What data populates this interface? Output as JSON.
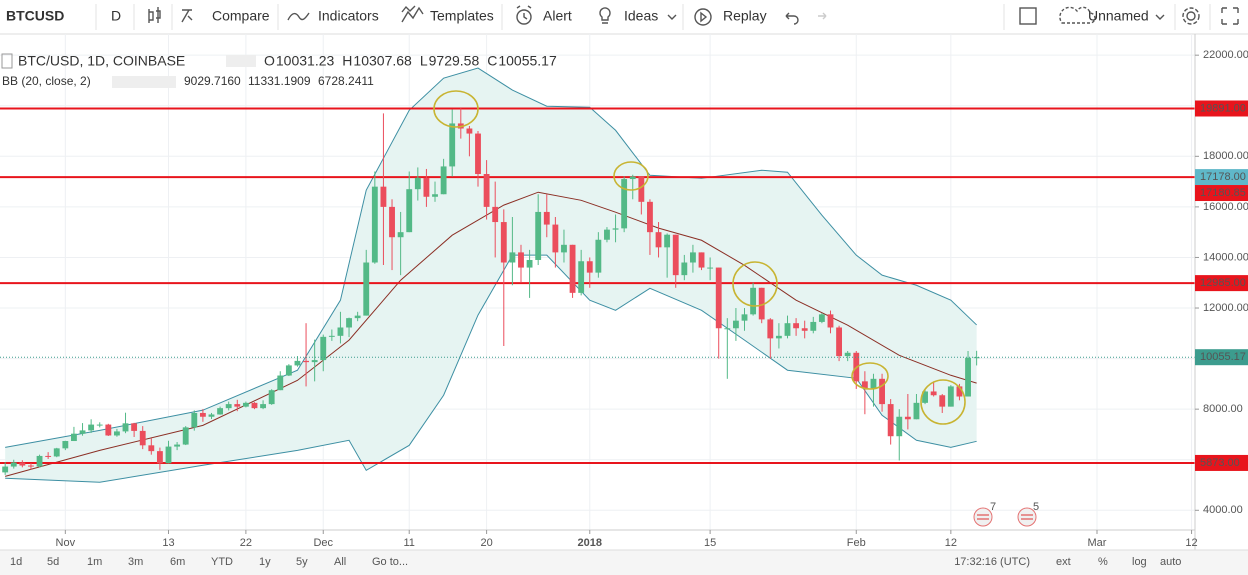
{
  "toolbar": {
    "symbol": "BTCUSD",
    "interval": "D",
    "buttons": [
      "Compare",
      "Indicators",
      "Templates",
      "Alert",
      "Ideas",
      "Replay"
    ],
    "layout": "Unnamed"
  },
  "legend": {
    "title": "BTC/USD, 1D, COINBASE",
    "ohlc_letters": [
      "O",
      "H",
      "L",
      "C"
    ],
    "indicator": "BB (20, close, 2)"
  },
  "events": {
    "counts": [
      7,
      5
    ]
  },
  "chart_data": {
    "type": "candlestick",
    "up_color": "#53b987",
    "down_color": "#eb4d5c",
    "grid": true,
    "ylim": [
      3300,
      22600
    ],
    "yticks": [
      {
        "value": 4000,
        "label": "4000.00"
      },
      {
        "value": 6000,
        "label": "6000.00"
      },
      {
        "value": 8000,
        "label": "8000.00"
      },
      {
        "value": 10000,
        "label": "10000.00"
      },
      {
        "value": 12000,
        "label": "12000.00"
      },
      {
        "value": 14000,
        "label": "14000.00"
      },
      {
        "value": 16000,
        "label": "16000.00"
      },
      {
        "value": 18000,
        "label": "18000.00"
      },
      {
        "value": 20000,
        "label": "20000.00"
      },
      {
        "value": 22000,
        "label": "22000.00"
      }
    ],
    "xlim": [
      -0.6,
      138.4
    ],
    "xticks": [
      {
        "value": 7,
        "label": "Nov"
      },
      {
        "value": 19,
        "label": "13"
      },
      {
        "value": 28,
        "label": "22"
      },
      {
        "value": 37,
        "label": "Dec"
      },
      {
        "value": 47,
        "label": "11"
      },
      {
        "value": 56,
        "label": "20"
      },
      {
        "value": 68,
        "label": "2018"
      },
      {
        "value": 82,
        "label": "15"
      },
      {
        "value": 99,
        "label": "Feb"
      },
      {
        "value": 110,
        "label": "12"
      },
      {
        "value": 127,
        "label": "Mar"
      },
      {
        "value": 138,
        "label": "12"
      }
    ],
    "open": [
      5500,
      5730,
      5890,
      5770,
      5730,
      6150,
      6130,
      6450,
      6740,
      7030,
      7160,
      7390,
      7390,
      6960,
      7120,
      7440,
      7140,
      6570,
      6340,
      5860,
      6520,
      6600,
      7280,
      7850,
      7700,
      7790,
      8040,
      8200,
      8100,
      8250,
      8040,
      8200,
      8750,
      9330,
      9730,
      9910,
      9860,
      9940,
      10860,
      10900,
      11230,
      11600,
      11700,
      13800,
      16800,
      16000,
      14800,
      15000,
      16700,
      17150,
      16400,
      16500,
      17600,
      19300,
      19100,
      18900,
      17300,
      16000,
      15400,
      13800,
      14200,
      13600,
      13900,
      15800,
      15300,
      14200,
      14500,
      12600,
      13850,
      13400,
      14700,
      15100,
      15150,
      17100,
      17200,
      16200,
      15000,
      14400,
      14900,
      13300,
      13800,
      14200,
      13600,
      13600,
      11200,
      11200,
      11500,
      11750,
      12800,
      11550,
      10800,
      10900,
      11400,
      11200,
      11100,
      11450,
      11750,
      11230,
      10100,
      10230,
      9100,
      8830,
      9200,
      8200,
      6930,
      7700,
      7600,
      8250,
      8700,
      8550,
      8100,
      8900,
      8500,
      10031.23
    ],
    "high": [
      5900,
      6000,
      5980,
      5870,
      6200,
      6300,
      6470,
      6750,
      7300,
      7450,
      7600,
      7480,
      7420,
      7220,
      7860,
      7460,
      7330,
      6850,
      6480,
      6750,
      6700,
      7330,
      7950,
      8000,
      7850,
      8100,
      8300,
      8370,
      8300,
      8280,
      8350,
      8790,
      9500,
      9780,
      10100,
      11400,
      10750,
      10950,
      11150,
      11850,
      11620,
      11850,
      14300,
      17400,
      19700,
      16300,
      15800,
      17400,
      17560,
      17500,
      17000,
      17900,
      19850,
      19900,
      19200,
      19000,
      17850,
      17000,
      15900,
      15600,
      14500,
      14300,
      16500,
      16500,
      15600,
      15100,
      14500,
      14300,
      14000,
      15000,
      15200,
      15700,
      17200,
      17270,
      17200,
      16300,
      15400,
      14950,
      14900,
      14100,
      14500,
      14200,
      14000,
      13600,
      11600,
      12000,
      12000,
      13000,
      12800,
      11600,
      11400,
      11700,
      11600,
      11500,
      11650,
      11800,
      11900,
      11300,
      10300,
      10300,
      9500,
      9400,
      9400,
      8400,
      8000,
      8600,
      8600,
      8800,
      9100,
      8600,
      8950,
      9000,
      10300,
      10307.68
    ],
    "low": [
      5400,
      5650,
      5700,
      5620,
      5700,
      6030,
      6100,
      6380,
      6740,
      6950,
      7060,
      7280,
      6940,
      6910,
      7050,
      6900,
      6420,
      6200,
      5600,
      5850,
      6380,
      6580,
      7150,
      7500,
      7610,
      7780,
      7950,
      7920,
      8070,
      8000,
      8000,
      8170,
      8750,
      9310,
      9680,
      8900,
      9100,
      9500,
      10700,
      10600,
      10850,
      11480,
      11700,
      13750,
      13700,
      13500,
      13300,
      15000,
      16250,
      16000,
      16200,
      16500,
      17200,
      18700,
      18000,
      16800,
      15500,
      14000,
      10500,
      12900,
      13000,
      12400,
      13700,
      14800,
      13600,
      13800,
      12400,
      12500,
      12800,
      13200,
      14600,
      14600,
      15000,
      16300,
      15700,
      14100,
      14000,
      13200,
      12800,
      13100,
      13400,
      13500,
      13100,
      10000,
      9200,
      10700,
      11100,
      11700,
      11400,
      10000,
      10400,
      10800,
      10900,
      10800,
      11000,
      11400,
      11000,
      9900,
      9900,
      8800,
      7800,
      8100,
      7900,
      6600,
      5970,
      7200,
      7600,
      8200,
      8500,
      7850,
      8100,
      8350,
      8500,
      9729.58
    ],
    "close": [
      5730,
      5890,
      5770,
      5730,
      6150,
      6130,
      6450,
      6740,
      7030,
      7160,
      7390,
      7390,
      6960,
      7120,
      7440,
      7140,
      6570,
      6340,
      5860,
      6520,
      6600,
      7280,
      7850,
      7700,
      7790,
      8040,
      8200,
      8100,
      8250,
      8040,
      8200,
      8750,
      9330,
      9730,
      9910,
      9860,
      9940,
      10860,
      10900,
      11230,
      11600,
      11700,
      13800,
      16800,
      16000,
      14800,
      15000,
      16700,
      17150,
      16400,
      16500,
      17600,
      19300,
      19100,
      18900,
      17300,
      16000,
      15400,
      13800,
      14200,
      13600,
      13900,
      15800,
      15300,
      14200,
      14500,
      12600,
      13850,
      13400,
      14700,
      15100,
      15150,
      17100,
      17200,
      16200,
      15000,
      14400,
      14900,
      13300,
      13800,
      14200,
      13600,
      13600,
      11200,
      11200,
      11500,
      11750,
      12800,
      11550,
      10800,
      10900,
      11400,
      11200,
      11100,
      11450,
      11750,
      11230,
      10100,
      10230,
      9100,
      8830,
      9200,
      8200,
      6930,
      7700,
      7600,
      8250,
      8700,
      8550,
      8100,
      8900,
      8500,
      10031.23,
      10055.17
    ],
    "last_color": "#3c9c8e",
    "series": [
      {
        "color": "#8b2f25",
        "x": [
          0,
          11,
          23,
          34,
          40,
          46,
          52,
          58,
          62,
          67,
          71,
          76,
          81,
          86,
          92,
          98,
          104,
          110,
          113
        ],
        "values": [
          5340,
          6370,
          7360,
          9140,
          10730,
          13100,
          14880,
          16070,
          16580,
          16260,
          15790,
          15160,
          14680,
          13690,
          12310,
          11320,
          10130,
          9340,
          9029.716
        ],
        "value_labels": [
          null,
          null,
          null,
          null,
          null,
          null,
          null,
          null,
          null,
          null,
          null,
          null,
          null,
          null,
          null,
          null,
          null,
          null,
          "9029.7160"
        ]
      },
      {
        "color": "#3d8fa3",
        "x": [
          0,
          11,
          23,
          34,
          39,
          42,
          47,
          51,
          55,
          59,
          63,
          68,
          71,
          75,
          81,
          88,
          91,
          95,
          99,
          102,
          106,
          110,
          113
        ],
        "values": [
          6490,
          7160,
          7960,
          9540,
          12310,
          16660,
          19820,
          21090,
          21490,
          20620,
          19980,
          19940,
          19030,
          17250,
          17130,
          17450,
          17370,
          15670,
          14090,
          13300,
          12900,
          12310,
          11331.1909
        ],
        "value_labels": [
          null,
          null,
          null,
          null,
          null,
          null,
          null,
          null,
          null,
          null,
          null,
          null,
          null,
          null,
          null,
          null,
          null,
          null,
          null,
          null,
          null,
          null,
          "11331.1909"
        ]
      },
      {
        "color": "#3d8fa3",
        "x": [
          0,
          11,
          23,
          34,
          40,
          42,
          47,
          51,
          55,
          59,
          63,
          68,
          71,
          75,
          81,
          86,
          91,
          99,
          102,
          106,
          110,
          113
        ],
        "values": [
          5270,
          5110,
          5780,
          6370,
          6770,
          5580,
          6570,
          8550,
          11720,
          14090,
          14090,
          12310,
          11910,
          12780,
          11910,
          10730,
          9540,
          9220,
          7760,
          6770,
          6490,
          6728.2411
        ],
        "value_labels": [
          null,
          null,
          null,
          null,
          null,
          null,
          null,
          null,
          null,
          null,
          null,
          null,
          null,
          null,
          null,
          null,
          null,
          null,
          null,
          null,
          null,
          "6728.2411"
        ]
      }
    ],
    "band_fill": "#e6f4f2",
    "hlines": [
      {
        "value": 19891,
        "label": "19891.00",
        "color": "#e8141c"
      },
      {
        "value": 17178,
        "label": "17178.00",
        "color": "#5fb8c9"
      },
      {
        "value": 12985,
        "label": "12985.00",
        "color": "#e8141c"
      },
      {
        "value": 5873,
        "label": "5873.00",
        "color": "#e8141c"
      }
    ],
    "line_color": "#e8141c",
    "price_labels": [
      {
        "value": 17180.85,
        "label": "17180.85",
        "color": "#e8141c"
      }
    ]
  },
  "bottom_bar": {
    "ranges": [
      "1d",
      "5d",
      "1m",
      "3m",
      "6m",
      "YTD",
      "1y",
      "5y",
      "All"
    ],
    "goto": "Go to...",
    "time": "17:32:16 (UTC)",
    "options": [
      "ext",
      "%",
      "log",
      "auto"
    ]
  }
}
